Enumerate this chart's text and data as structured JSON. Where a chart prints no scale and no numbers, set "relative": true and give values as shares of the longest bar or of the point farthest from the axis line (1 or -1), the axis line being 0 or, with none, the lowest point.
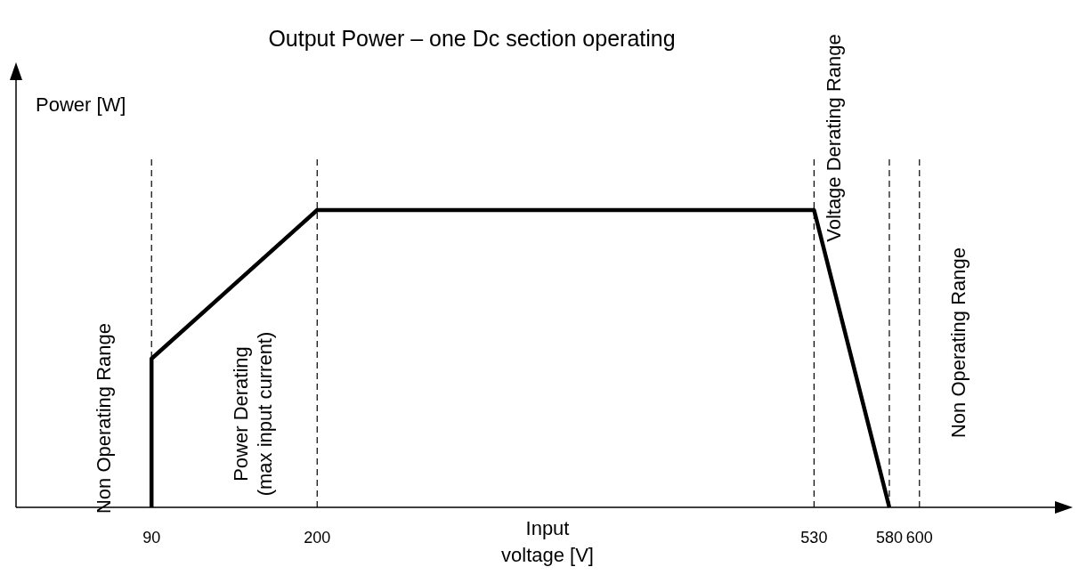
{
  "chart_data": {
    "type": "line",
    "title": "Output Power – one Dc section operating",
    "xlabel": "Input\nvoltage [V]",
    "ylabel": "Power [W]",
    "relative": true,
    "x": [
      90,
      90,
      200,
      530,
      580
    ],
    "series": [
      {
        "color": "#000000",
        "values": [
          0,
          0.5,
          1,
          1,
          0
        ]
      }
    ],
    "xlim": [
      0,
      690
    ],
    "xticks": [
      90,
      200,
      530,
      580,
      600
    ],
    "ref_lines": [
      {
        "axis": "x",
        "value": 90,
        "line_style": "dashed",
        "color": "#000000"
      },
      {
        "axis": "x",
        "value": 200,
        "line_style": "dashed",
        "color": "#000000"
      },
      {
        "axis": "x",
        "value": 530,
        "line_style": "dashed",
        "color": "#000000"
      },
      {
        "axis": "x",
        "value": 580,
        "line_style": "dashed",
        "color": "#000000"
      },
      {
        "axis": "x",
        "value": 600,
        "line_style": "dashed",
        "color": "#000000"
      }
    ],
    "annotations": [
      "Non Operating Range",
      "Power Derating\n(max input current)",
      "Voltage Derating Range",
      "Non Operating Range"
    ],
    "marker": "none",
    "line_style": "solid"
  }
}
